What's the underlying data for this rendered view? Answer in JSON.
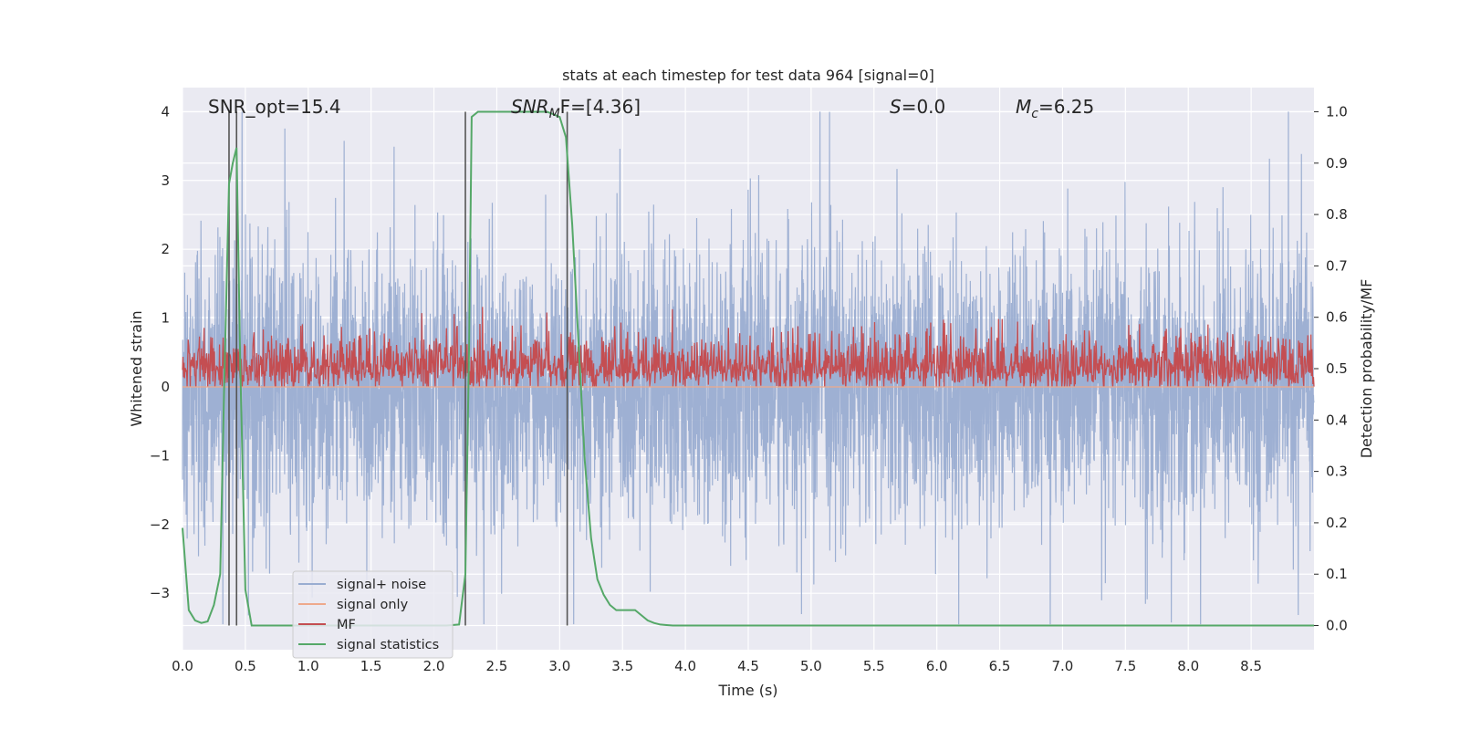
{
  "chart_data": {
    "type": "line",
    "title": "stats at each timestep for test data 964 [signal=0]",
    "xlabel": "Time (s)",
    "ylabel": "Whitened strain",
    "y2label": "Detection probability/MF",
    "xlim": [
      0.0,
      9.0
    ],
    "ylim": [
      -3.82,
      4.35
    ],
    "y2lim": [
      -0.047,
      1.047
    ],
    "xticks": [
      "0.0",
      "0.5",
      "1.0",
      "1.5",
      "2.0",
      "2.5",
      "3.0",
      "3.5",
      "4.0",
      "4.5",
      "5.0",
      "5.5",
      "6.0",
      "6.5",
      "7.0",
      "7.5",
      "8.0",
      "8.5"
    ],
    "yticks": [
      "4",
      "3",
      "2",
      "1",
      "0",
      "−1",
      "−2",
      "−3"
    ],
    "y2ticks": [
      "1.0",
      "0.9",
      "0.8",
      "0.7",
      "0.6",
      "0.5",
      "0.4",
      "0.3",
      "0.2",
      "0.1",
      "0.0"
    ],
    "grid": true,
    "legend_position": "lower-left",
    "annotations": {
      "snr_opt": "SNR_opt=15.4",
      "snr_mf_main": "SNR",
      "snr_mf_sub": "M",
      "snr_mf_rest": "F=[4.36]",
      "s_main": "S",
      "s_rest": "=0.0",
      "mc_main": "M",
      "mc_sub": "c",
      "mc_rest": "=6.25"
    },
    "vertical_markers_x": [
      0.37,
      0.43,
      2.25,
      3.06
    ],
    "series": [
      {
        "name": "signal+ noise",
        "color": "#9aadd1",
        "noise_sigma": 0.95,
        "peak_high": 4.0,
        "peak_low": -3.45
      },
      {
        "name": "signal only",
        "color": "#eea98c",
        "values_constant": 0.0
      },
      {
        "name": "MF",
        "color": "#c44e52",
        "baseline": 0.5,
        "max": 0.62
      },
      {
        "name": "signal statistics",
        "color": "#55a868",
        "x": [
          0.0,
          0.05,
          0.1,
          0.15,
          0.2,
          0.25,
          0.3,
          0.33,
          0.37,
          0.4,
          0.43,
          0.46,
          0.5,
          0.55,
          0.6,
          1.0,
          1.5,
          2.0,
          2.1,
          2.2,
          2.25,
          2.28,
          2.3,
          2.35,
          2.5,
          2.7,
          2.9,
          3.0,
          3.05,
          3.1,
          3.15,
          3.2,
          3.25,
          3.3,
          3.35,
          3.4,
          3.45,
          3.5,
          3.55,
          3.6,
          3.65,
          3.7,
          3.75,
          3.8,
          3.85,
          3.9,
          4.0,
          4.5,
          5.0,
          6.0,
          7.0,
          8.0,
          9.0
        ],
        "y": [
          0.19,
          0.03,
          0.01,
          0.005,
          0.008,
          0.04,
          0.1,
          0.45,
          0.86,
          0.9,
          0.93,
          0.5,
          0.07,
          0.0,
          0.0,
          0.0,
          0.0,
          0.0,
          0.0,
          0.002,
          0.1,
          0.55,
          0.99,
          1.0,
          1.0,
          1.0,
          1.0,
          0.99,
          0.95,
          0.78,
          0.55,
          0.32,
          0.17,
          0.09,
          0.06,
          0.04,
          0.03,
          0.03,
          0.03,
          0.03,
          0.02,
          0.01,
          0.005,
          0.002,
          0.001,
          0.0,
          0.0,
          0.0,
          0.0,
          0.0,
          0.0,
          0.0,
          0.0
        ]
      }
    ]
  }
}
